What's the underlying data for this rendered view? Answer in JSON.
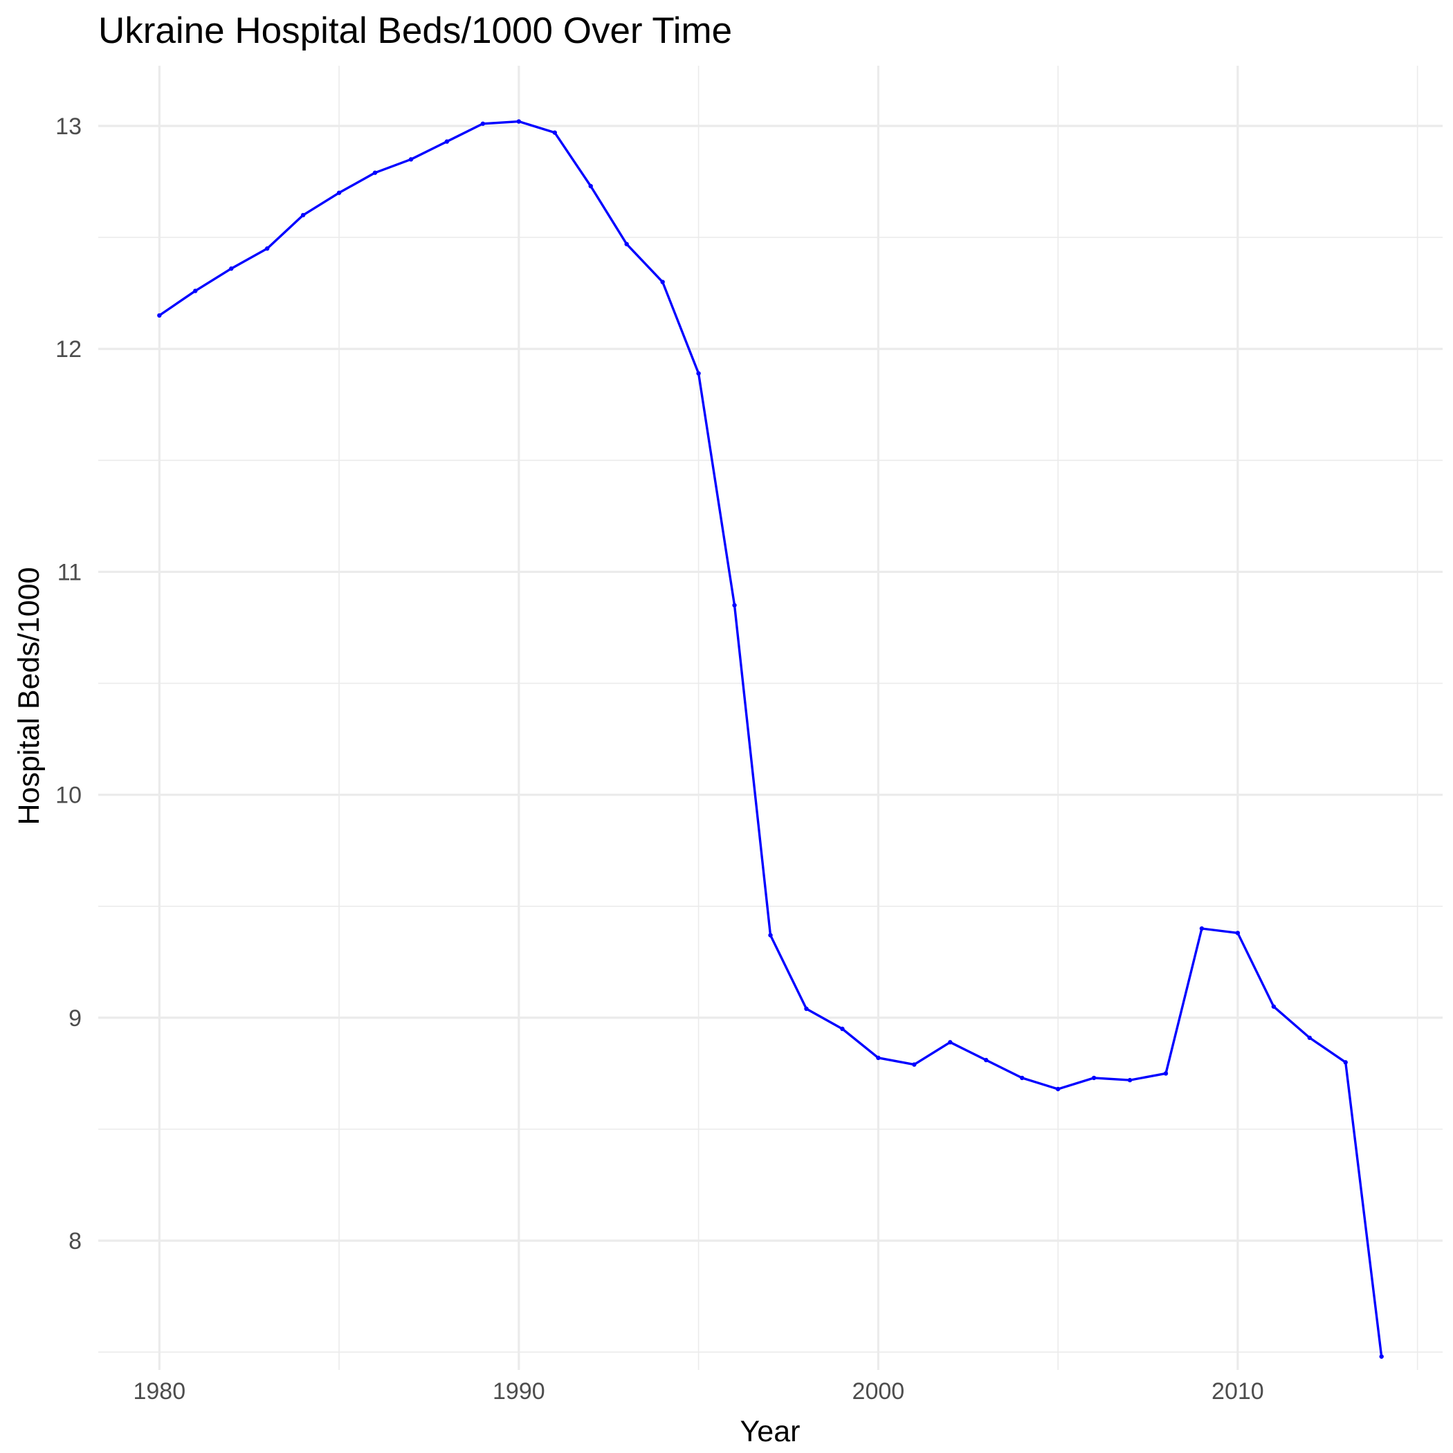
{
  "chart_data": {
    "type": "line",
    "title": "Ukraine Hospital Beds/1000 Over Time",
    "xlabel": "Year",
    "ylabel": "Hospital Beds/1000",
    "xlim": [
      1978.3,
      2015.7
    ],
    "ylim": [
      7.42,
      13.27
    ],
    "x_ticks": [
      1980,
      1990,
      2000,
      2010
    ],
    "x_minor_ticks": [
      1985,
      1995,
      2005,
      2015
    ],
    "y_ticks": [
      8,
      9,
      10,
      11,
      12,
      13
    ],
    "y_minor_ticks": [
      7.5,
      8.5,
      9.5,
      10.5,
      11.5,
      12.5
    ],
    "grid": true,
    "legend": "none",
    "line_color": "#0000ff",
    "x": [
      1980,
      1981,
      1982,
      1983,
      1984,
      1985,
      1986,
      1987,
      1988,
      1989,
      1990,
      1991,
      1992,
      1993,
      1994,
      1995,
      1996,
      1997,
      1998,
      1999,
      2000,
      2001,
      2002,
      2003,
      2004,
      2005,
      2006,
      2007,
      2008,
      2009,
      2010,
      2011,
      2012,
      2013,
      2014
    ],
    "values": [
      12.15,
      12.26,
      12.36,
      12.45,
      12.6,
      12.7,
      12.79,
      12.85,
      12.93,
      13.01,
      13.02,
      12.97,
      12.73,
      12.47,
      12.3,
      11.89,
      10.85,
      9.37,
      9.04,
      8.95,
      8.82,
      8.79,
      8.89,
      8.81,
      8.73,
      8.68,
      8.73,
      8.72,
      8.75,
      9.4,
      9.38,
      9.05,
      8.91,
      8.8,
      7.48
    ]
  }
}
